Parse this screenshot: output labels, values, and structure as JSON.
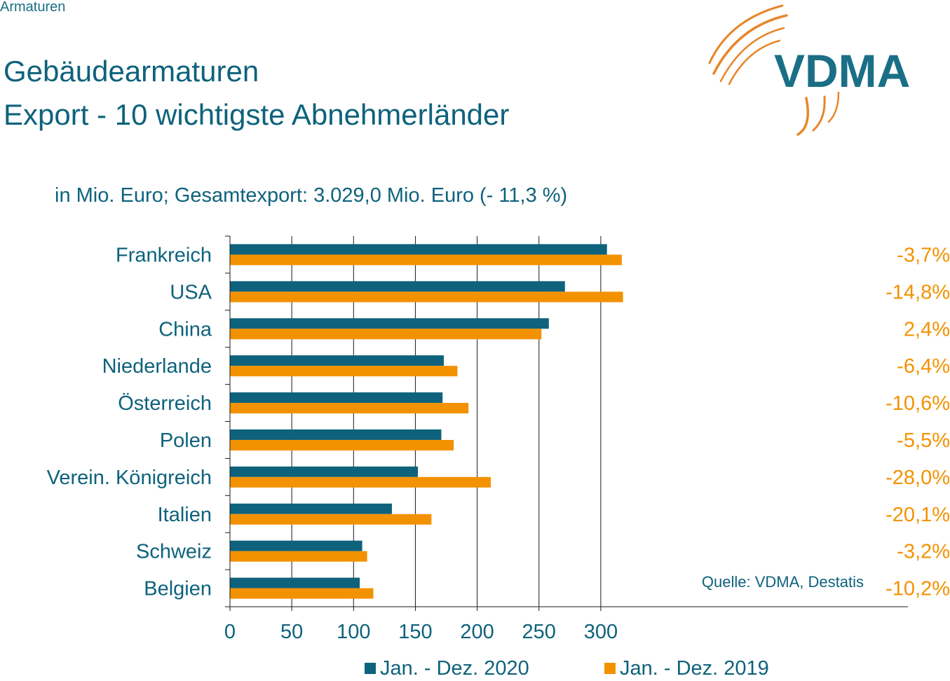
{
  "header": {
    "topic": "Armaturen",
    "title_line1": "Gebäudearmaturen",
    "title_line2": "Export - 10 wichtigste Abnehmerländer",
    "subtitle": "in Mio. Euro; Gesamtexport: 3.029,0 Mio. Euro (- 11,3 %)",
    "logo_text": "VDMA"
  },
  "colors": {
    "series_2020": "#0e627c",
    "series_2019": "#f39200",
    "text": "#0e627c",
    "change_label": "#f39200",
    "grid": "#1a1a1a"
  },
  "chart_data": {
    "type": "bar",
    "orientation": "horizontal",
    "categories": [
      "Frankreich",
      "USA",
      "China",
      "Niederlande",
      "Österreich",
      "Polen",
      "Verein. Königreich",
      "Italien",
      "Schweiz",
      "Belgien"
    ],
    "series": [
      {
        "name": "Jan. - Dez. 2020",
        "values": [
          305,
          271,
          258,
          173,
          172,
          171,
          152,
          131,
          107,
          105
        ]
      },
      {
        "name": "Jan. - Dez. 2019",
        "values": [
          317,
          318,
          252,
          184,
          193,
          181,
          211,
          163,
          111,
          116
        ]
      }
    ],
    "change_labels": [
      "-3,7%",
      "-14,8%",
      "2,4%",
      "-6,4%",
      "-10,6%",
      "-5,5%",
      "-28,0%",
      "-20,1%",
      "-3,2%",
      "-10,2%"
    ],
    "xlim": [
      0,
      330
    ],
    "xticks": [
      0,
      50,
      100,
      150,
      200,
      250,
      300
    ],
    "grid": "vertical",
    "legend": "bottom",
    "source": "Quelle: VDMA, Destatis"
  }
}
